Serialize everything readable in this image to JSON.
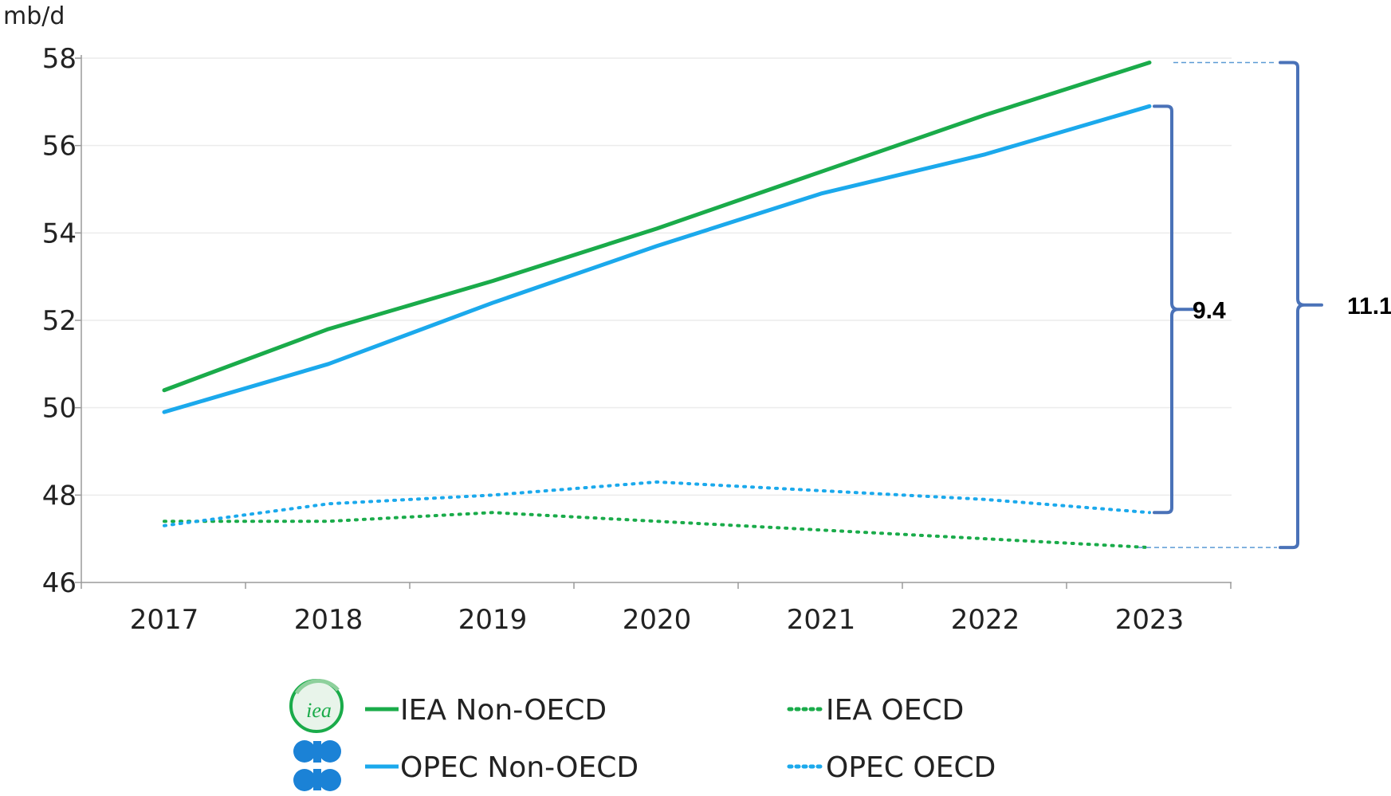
{
  "chart_data": {
    "type": "line",
    "ylabel": "mb/d",
    "ylim": [
      46,
      58
    ],
    "yticks": [
      "46",
      "48",
      "50",
      "52",
      "54",
      "56",
      "58"
    ],
    "categories": [
      "2017",
      "2018",
      "2019",
      "2020",
      "2021",
      "2022",
      "2023"
    ],
    "grid": true,
    "series": [
      {
        "name": "IEA Non-OECD",
        "style": "solid",
        "color": "#1aab4a",
        "values": [
          50.4,
          51.8,
          52.9,
          54.1,
          55.4,
          56.7,
          57.9
        ]
      },
      {
        "name": "OPEC Non-OECD",
        "style": "solid",
        "color": "#1ba9ec",
        "values": [
          49.9,
          51.0,
          52.4,
          53.7,
          54.9,
          55.8,
          56.9
        ]
      },
      {
        "name": "IEA OECD",
        "style": "dotted",
        "color": "#1aab4a",
        "values": [
          47.4,
          47.4,
          47.6,
          47.4,
          47.2,
          47.0,
          46.8
        ]
      },
      {
        "name": "OPEC OECD",
        "style": "dotted",
        "color": "#1ba9ec",
        "values": [
          47.3,
          47.8,
          48.0,
          48.3,
          48.1,
          47.9,
          47.6
        ]
      }
    ],
    "annotations": [
      {
        "label": "9.4",
        "from": 47.6,
        "to": 56.9,
        "color": "#4a72b8"
      },
      {
        "label": "11.1",
        "from": 46.8,
        "to": 57.9,
        "color": "#4a72b8"
      }
    ],
    "legend_placement": "bottom-center",
    "legend_logos": [
      "iea-logo",
      "opec-logo"
    ]
  }
}
